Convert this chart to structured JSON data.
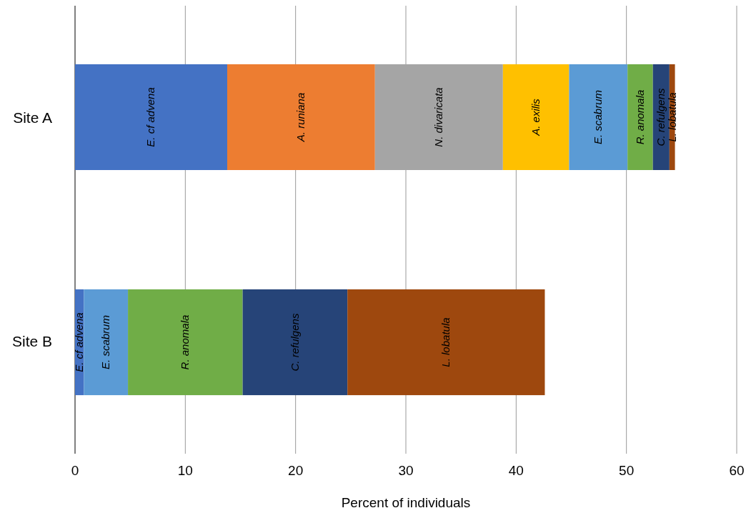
{
  "chart_data": {
    "type": "bar",
    "orientation": "horizontal",
    "stacked": true,
    "xlabel": "Percent of individuals",
    "categories": [
      "Site A",
      "Site B"
    ],
    "series": [
      {
        "name": "E. cf advena",
        "color": "#4472c4",
        "values": [
          13.8,
          0.8
        ]
      },
      {
        "name": "A. runiana",
        "color": "#ed7d31",
        "values": [
          13.4,
          null
        ]
      },
      {
        "name": "N. divaricata",
        "color": "#a5a5a5",
        "values": [
          11.6,
          null
        ]
      },
      {
        "name": "A. exilis",
        "color": "#ffc000",
        "values": [
          6.0,
          null
        ]
      },
      {
        "name": "E. scabrum",
        "color": "#5b9bd5",
        "values": [
          5.3,
          4.0
        ]
      },
      {
        "name": "R. anomala",
        "color": "#70ad47",
        "values": [
          2.3,
          10.4
        ]
      },
      {
        "name": "C. refulgens",
        "color": "#264478",
        "values": [
          1.5,
          9.5
        ]
      },
      {
        "name": "L. lobatula",
        "color": "#9e480e",
        "values": [
          0.5,
          17.9
        ]
      }
    ],
    "xlim": [
      0,
      60
    ],
    "xticks": [
      0,
      10,
      20,
      30,
      40,
      50,
      60
    ],
    "grid": "x",
    "legend": false
  }
}
